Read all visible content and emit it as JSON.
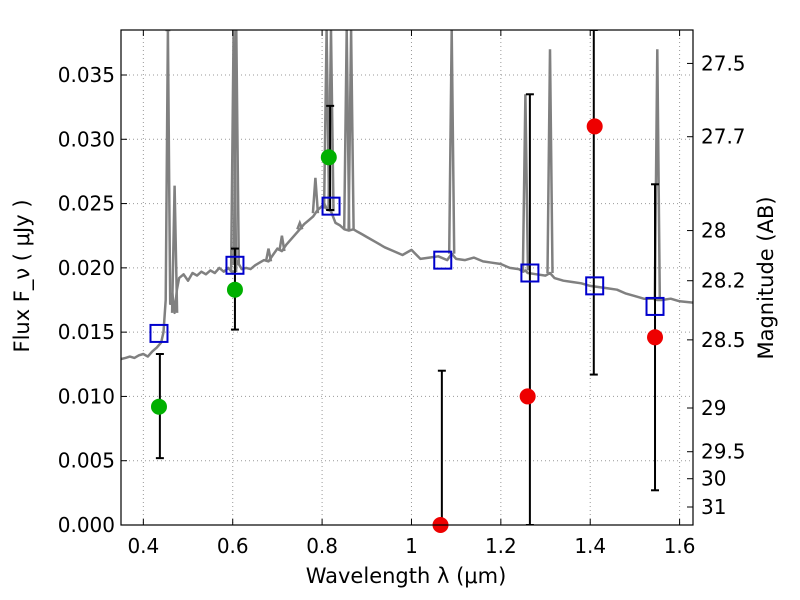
{
  "chart_data": {
    "type": "scatter",
    "xlabel": "Wavelength  λ (μm)",
    "ylabel": "Flux  F_ν ( μJy )",
    "y2label": "Magnitude (AB)",
    "xlim": [
      0.35,
      1.63
    ],
    "ylim": [
      0.0,
      0.0385
    ],
    "grid": true,
    "x_ticks": [
      {
        "value": 0.4,
        "label": "0.4"
      },
      {
        "value": 0.6,
        "label": "0.6"
      },
      {
        "value": 0.8,
        "label": "0.8"
      },
      {
        "value": 1.0,
        "label": "1"
      },
      {
        "value": 1.2,
        "label": "1.2"
      },
      {
        "value": 1.4,
        "label": "1.4"
      },
      {
        "value": 1.6,
        "label": "1.6"
      }
    ],
    "y_ticks": [
      {
        "value": 0.0,
        "label": "0.000"
      },
      {
        "value": 0.005,
        "label": "0.005"
      },
      {
        "value": 0.01,
        "label": "0.010"
      },
      {
        "value": 0.015,
        "label": "0.015"
      },
      {
        "value": 0.02,
        "label": "0.020"
      },
      {
        "value": 0.025,
        "label": "0.025"
      },
      {
        "value": 0.03,
        "label": "0.030"
      },
      {
        "value": 0.035,
        "label": "0.035"
      }
    ],
    "mag_ticks": [
      {
        "flux": 0.0359,
        "label": "27.5"
      },
      {
        "flux": 0.0302,
        "label": "27.7"
      },
      {
        "flux": 0.0229,
        "label": "28"
      },
      {
        "flux": 0.019,
        "label": "28.2"
      },
      {
        "flux": 0.0144,
        "label": "28.5"
      },
      {
        "flux": 0.0091,
        "label": "29"
      },
      {
        "flux": 0.0057,
        "label": "29.5"
      },
      {
        "flux": 0.0036,
        "label": "30"
      },
      {
        "flux": 0.0014,
        "label": "31"
      }
    ],
    "colors": {
      "spectrum": "#808080",
      "model": "#0000cc",
      "detection": "#00b000",
      "upper": "#ee0000",
      "errorbar": "#000000",
      "grid": "#999999"
    },
    "spectrum": {
      "x": [
        0.35,
        0.36,
        0.37,
        0.38,
        0.39,
        0.4,
        0.41,
        0.42,
        0.43,
        0.44,
        0.445,
        0.45,
        0.455,
        0.46,
        0.465,
        0.47,
        0.475,
        0.48,
        0.49,
        0.5,
        0.51,
        0.52,
        0.53,
        0.54,
        0.55,
        0.56,
        0.57,
        0.58,
        0.59,
        0.6,
        0.605,
        0.61,
        0.62,
        0.63,
        0.64,
        0.65,
        0.66,
        0.67,
        0.68,
        0.69,
        0.7,
        0.71,
        0.72,
        0.73,
        0.74,
        0.75,
        0.76,
        0.77,
        0.78,
        0.79,
        0.8,
        0.805,
        0.81,
        0.82,
        0.83,
        0.84,
        0.85,
        0.86,
        0.87,
        0.88,
        0.89,
        0.9,
        0.92,
        0.94,
        0.96,
        0.98,
        1.0,
        1.02,
        1.04,
        1.06,
        1.08,
        1.09,
        1.1,
        1.12,
        1.14,
        1.16,
        1.18,
        1.2,
        1.22,
        1.24,
        1.25,
        1.255,
        1.26,
        1.28,
        1.3,
        1.31,
        1.32,
        1.34,
        1.36,
        1.38,
        1.4,
        1.42,
        1.44,
        1.46,
        1.48,
        1.5,
        1.52,
        1.54,
        1.55,
        1.56,
        1.58,
        1.6,
        1.63
      ],
      "y": [
        0.0129,
        0.013,
        0.0131,
        0.013,
        0.0132,
        0.0133,
        0.0131,
        0.0135,
        0.0138,
        0.0142,
        0.015,
        0.0175,
        0.0385,
        0.0172,
        0.018,
        0.0165,
        0.0183,
        0.0192,
        0.0195,
        0.019,
        0.0196,
        0.0194,
        0.0197,
        0.0195,
        0.0198,
        0.0196,
        0.02,
        0.0197,
        0.02,
        0.0196,
        0.0198,
        0.0205,
        0.0199,
        0.02,
        0.0199,
        0.0202,
        0.0204,
        0.0206,
        0.0205,
        0.021,
        0.0215,
        0.0213,
        0.0218,
        0.0222,
        0.0226,
        0.023,
        0.0234,
        0.0237,
        0.024,
        0.0245,
        0.0248,
        0.025,
        0.0246,
        0.0244,
        0.0235,
        0.0233,
        0.023,
        0.0229,
        0.023,
        0.0228,
        0.0226,
        0.0224,
        0.022,
        0.0216,
        0.0213,
        0.021,
        0.0214,
        0.0207,
        0.0208,
        0.0209,
        0.0206,
        0.0211,
        0.0207,
        0.0206,
        0.0208,
        0.0205,
        0.0204,
        0.0203,
        0.02,
        0.0199,
        0.0197,
        0.0198,
        0.0196,
        0.0195,
        0.0194,
        0.0196,
        0.0192,
        0.019,
        0.0189,
        0.0188,
        0.0186,
        0.0185,
        0.0184,
        0.0183,
        0.018,
        0.0178,
        0.0176,
        0.0176,
        0.0175,
        0.0175,
        0.0176,
        0.0174,
        0.0173
      ]
    },
    "emission_lines": [
      {
        "x": 0.455,
        "peak": 0.0385
      },
      {
        "x": 0.47,
        "peak": 0.0264
      },
      {
        "x": 0.602,
        "peak": 0.0385
      },
      {
        "x": 0.608,
        "peak": 0.0385
      },
      {
        "x": 0.68,
        "peak": 0.0215
      },
      {
        "x": 0.71,
        "peak": 0.0225
      },
      {
        "x": 0.75,
        "peak": 0.0235
      },
      {
        "x": 0.785,
        "peak": 0.027
      },
      {
        "x": 0.81,
        "peak": 0.0385
      },
      {
        "x": 0.82,
        "peak": 0.0385
      },
      {
        "x": 0.855,
        "peak": 0.0385
      },
      {
        "x": 0.865,
        "peak": 0.0385
      },
      {
        "x": 1.09,
        "peak": 0.0385
      },
      {
        "x": 1.255,
        "peak": 0.0335
      },
      {
        "x": 1.31,
        "peak": 0.037
      },
      {
        "x": 1.55,
        "peak": 0.037
      }
    ],
    "series": [
      {
        "marker": "square",
        "x": [
          0.435,
          0.605,
          0.82,
          1.07,
          1.265,
          1.41,
          1.545
        ],
        "y": [
          0.0149,
          0.0202,
          0.0248,
          0.0206,
          0.0196,
          0.0186,
          0.017
        ]
      },
      {
        "marker": "circle",
        "x": [
          0.435,
          0.605,
          0.815
        ],
        "y": [
          0.0092,
          0.0183,
          0.0286
        ]
      },
      {
        "marker": "circle-red",
        "x": [
          1.065,
          1.26,
          1.41,
          1.545
        ],
        "y": [
          0.0,
          0.01,
          0.031,
          0.0146
        ]
      }
    ],
    "errorbars": [
      {
        "x": 0.437,
        "low": 0.0052,
        "high": 0.0133
      },
      {
        "x": 0.605,
        "low": 0.0152,
        "high": 0.0215
      },
      {
        "x": 0.818,
        "low": 0.0245,
        "high": 0.0326
      },
      {
        "x": 1.068,
        "low": 0.0,
        "high": 0.012
      },
      {
        "x": 1.265,
        "low": 0.0,
        "high": 0.0335
      },
      {
        "x": 1.408,
        "low": 0.0117,
        "high": 0.0385
      },
      {
        "x": 1.545,
        "low": 0.0027,
        "high": 0.0265
      }
    ]
  }
}
